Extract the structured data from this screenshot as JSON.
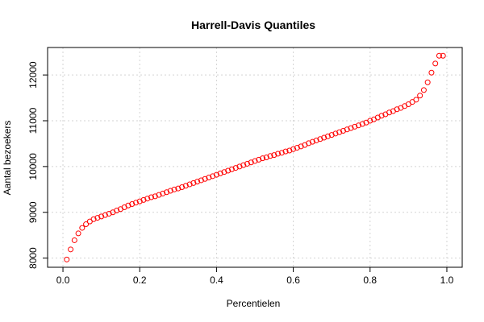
{
  "chart_data": {
    "type": "scatter",
    "title": "Harrell-Davis Quantiles",
    "xlabel": "Percentielen",
    "ylabel": "Aantal bezoekers",
    "xlim": [
      0,
      1
    ],
    "ylim": [
      7800,
      12600
    ],
    "xticks": [
      "0.0",
      "0.2",
      "0.4",
      "0.6",
      "0.8",
      "1.0"
    ],
    "yticks": [
      "8000",
      "9000",
      "10000",
      "11000",
      "12000"
    ],
    "grid": true,
    "marker_color": "#ff0000",
    "series": [
      {
        "x": [
          0.01,
          0.02,
          0.03,
          0.04,
          0.05,
          0.06,
          0.07,
          0.08,
          0.09,
          0.1,
          0.11,
          0.12,
          0.13,
          0.14,
          0.15,
          0.16,
          0.17,
          0.18,
          0.19,
          0.2,
          0.21,
          0.22,
          0.23,
          0.24,
          0.25,
          0.26,
          0.27,
          0.28,
          0.29,
          0.3,
          0.31,
          0.32,
          0.33,
          0.34,
          0.35,
          0.36,
          0.37,
          0.38,
          0.39,
          0.4,
          0.41,
          0.42,
          0.43,
          0.44,
          0.45,
          0.46,
          0.47,
          0.48,
          0.49,
          0.5,
          0.51,
          0.52,
          0.53,
          0.54,
          0.55,
          0.56,
          0.57,
          0.58,
          0.59,
          0.6,
          0.61,
          0.62,
          0.63,
          0.64,
          0.65,
          0.66,
          0.67,
          0.68,
          0.69,
          0.7,
          0.71,
          0.72,
          0.73,
          0.74,
          0.75,
          0.76,
          0.77,
          0.78,
          0.79,
          0.8,
          0.81,
          0.82,
          0.83,
          0.84,
          0.85,
          0.86,
          0.87,
          0.88,
          0.89,
          0.9,
          0.91,
          0.92,
          0.93,
          0.94,
          0.95,
          0.96,
          0.97,
          0.98,
          0.99
        ],
        "y": [
          7970,
          8190,
          8390,
          8540,
          8660,
          8740,
          8800,
          8850,
          8880,
          8910,
          8940,
          8970,
          9000,
          9040,
          9070,
          9110,
          9150,
          9180,
          9210,
          9240,
          9270,
          9300,
          9330,
          9350,
          9380,
          9410,
          9440,
          9470,
          9500,
          9520,
          9550,
          9580,
          9610,
          9640,
          9670,
          9700,
          9730,
          9760,
          9790,
          9820,
          9850,
          9880,
          9910,
          9940,
          9970,
          10000,
          10030,
          10060,
          10090,
          10120,
          10150,
          10180,
          10200,
          10230,
          10250,
          10280,
          10300,
          10330,
          10350,
          10380,
          10410,
          10440,
          10470,
          10510,
          10540,
          10570,
          10600,
          10630,
          10660,
          10690,
          10720,
          10750,
          10780,
          10810,
          10840,
          10870,
          10900,
          10930,
          10960,
          11000,
          11030,
          11070,
          11110,
          11140,
          11180,
          11210,
          11250,
          11280,
          11320,
          11360,
          11410,
          11460,
          11550,
          11670,
          11840,
          12050,
          12250,
          12420,
          12420
        ]
      }
    ]
  }
}
